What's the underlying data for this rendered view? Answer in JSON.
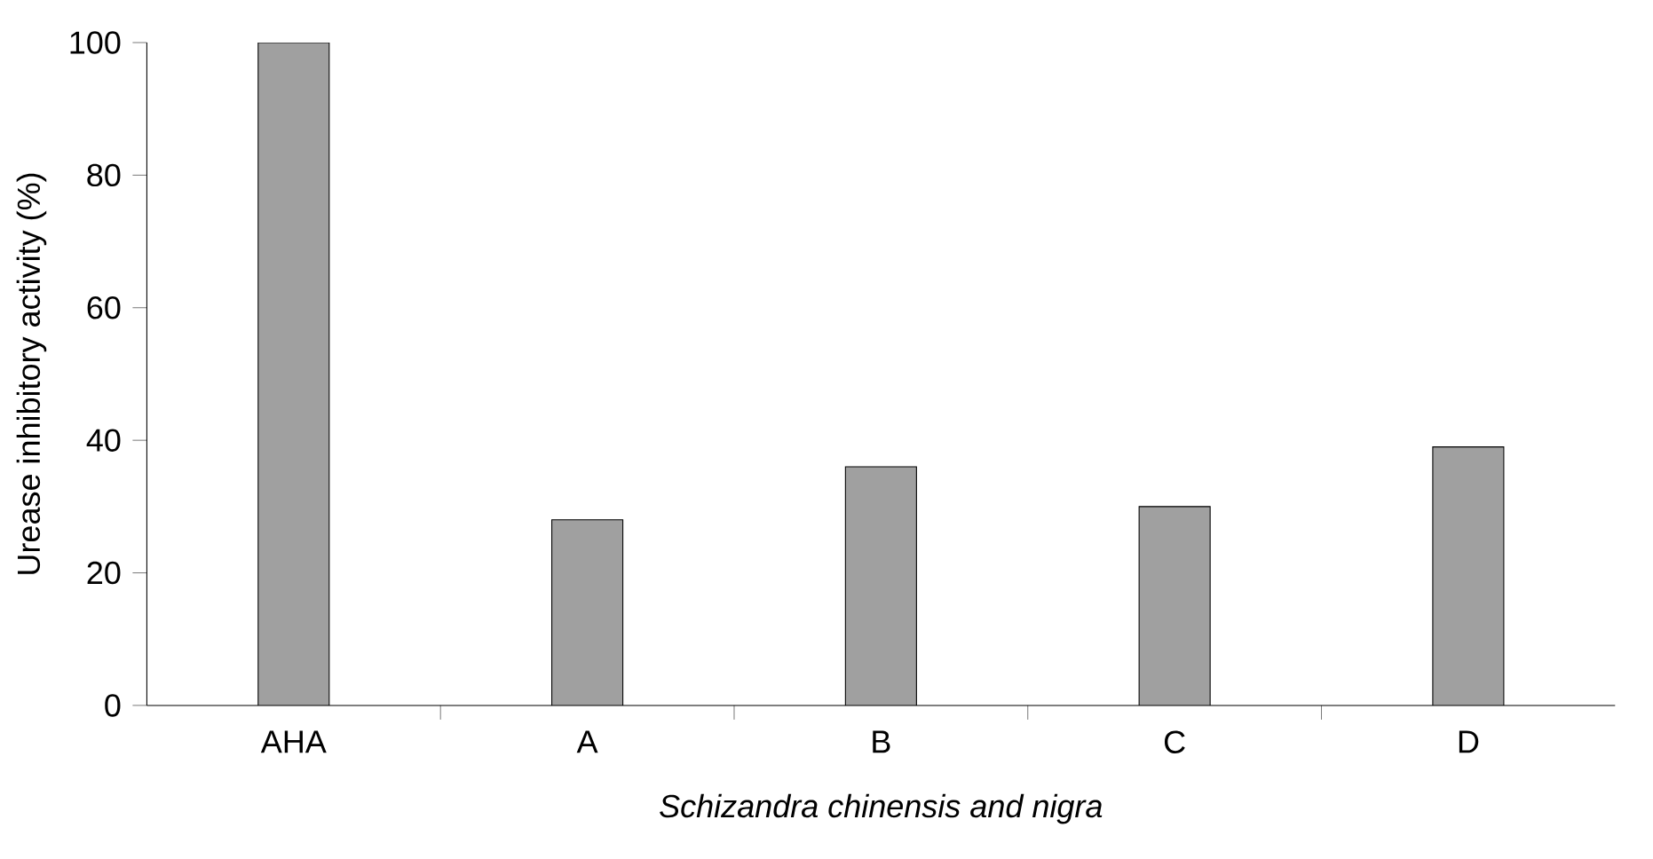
{
  "chart_data": {
    "type": "bar",
    "xlabel": "Schizandra chinensis and nigra",
    "ylabel": "Urease inhibitory activity (%)",
    "categories": [
      "AHA",
      "A",
      "B",
      "C",
      "D"
    ],
    "values": [
      100,
      28,
      36,
      30,
      39
    ],
    "color": "#a0a0a0",
    "ylim": [
      0,
      100
    ],
    "yticks": [
      0,
      20,
      40,
      60,
      80,
      100
    ],
    "grid": false
  }
}
